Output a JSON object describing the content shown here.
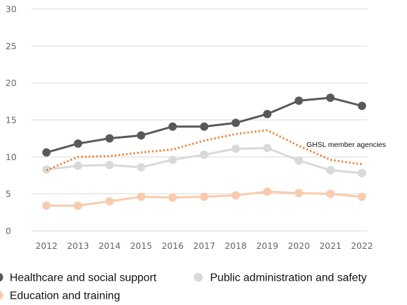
{
  "chart_data": {
    "type": "line",
    "categories": [
      "2012",
      "2013",
      "2014",
      "2015",
      "2016",
      "2017",
      "2018",
      "2019",
      "2020",
      "2021",
      "2022"
    ],
    "ylim": [
      0,
      30
    ],
    "yticks": [
      0,
      5,
      10,
      15,
      20,
      25,
      30
    ],
    "grid": true,
    "legend_position": "bottom-left",
    "series": [
      {
        "name": "Healthcare and social support",
        "color": "#595959",
        "style": "solid-markers",
        "values": [
          10.6,
          11.8,
          12.5,
          12.9,
          14.1,
          14.1,
          14.6,
          15.8,
          17.6,
          18.0,
          16.9
        ]
      },
      {
        "name": "Public administration and safety",
        "color": "#d9d9d9",
        "style": "solid-markers",
        "values": [
          8.3,
          8.8,
          8.9,
          8.6,
          9.6,
          10.3,
          11.1,
          11.2,
          9.5,
          8.2,
          7.8
        ]
      },
      {
        "name": "Education and training",
        "color": "#f8cbad",
        "style": "solid-markers",
        "values": [
          3.4,
          3.4,
          4.0,
          4.6,
          4.5,
          4.6,
          4.8,
          5.3,
          5.1,
          5.0,
          4.6
        ]
      },
      {
        "name": "GHSL member agencies",
        "color": "#ed7d31",
        "style": "dotted",
        "values": [
          8.2,
          10.0,
          10.1,
          10.6,
          11.0,
          12.2,
          13.1,
          13.6,
          11.5,
          9.6,
          9.0
        ]
      }
    ],
    "annotations": [
      {
        "text": "GHSL member agencies",
        "series": "GHSL member agencies"
      }
    ]
  }
}
